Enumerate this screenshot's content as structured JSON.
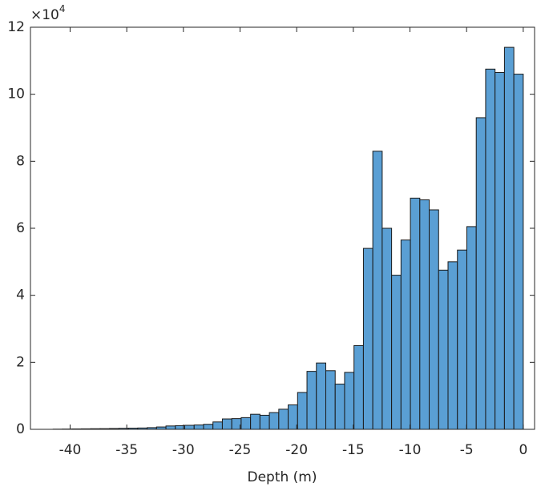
{
  "chart_data": {
    "type": "histogram",
    "xlabel": "Depth (m)",
    "y_multiplier": {
      "base": "×10",
      "exponent": "4"
    },
    "bins": [
      -41.5,
      -40.67,
      -39.84,
      -39.01,
      -38.18,
      -37.35,
      -36.52,
      -35.69,
      -34.86,
      -34.03,
      -33.2,
      -32.37,
      -31.54,
      -30.71,
      -29.88,
      -29.05,
      -28.22,
      -27.39,
      -26.56,
      -25.73,
      -24.9,
      -24.07,
      -23.24,
      -22.41,
      -21.58,
      -20.75,
      -19.92,
      -19.09,
      -18.26,
      -17.43,
      -16.6,
      -15.77,
      -14.94,
      -14.11,
      -13.28,
      -12.45,
      -11.62,
      -10.79,
      -9.96,
      -9.13,
      -8.3,
      -7.47,
      -6.64,
      -5.81,
      -4.98,
      -4.15,
      -3.32,
      -2.49,
      -1.66,
      -0.83,
      0
    ],
    "values": [
      50,
      80,
      120,
      150,
      180,
      200,
      250,
      300,
      350,
      400,
      500,
      700,
      1000,
      1100,
      1200,
      1300,
      1500,
      2200,
      3100,
      3200,
      3500,
      4500,
      4200,
      5000,
      6000,
      7300,
      11000,
      17300,
      19800,
      17500,
      13500,
      17000,
      25000,
      54000,
      83000,
      60000,
      46000,
      56500,
      69000,
      68500,
      65500,
      47500,
      50000,
      53500,
      60500,
      93000,
      107500,
      106500,
      114000,
      106000
    ],
    "color": "#5a9fd4",
    "edgecolor": "#1a1a1a",
    "xlim": [
      -43.5,
      1
    ],
    "ylim": [
      0,
      120000
    ],
    "xticks": [
      -40,
      -35,
      -30,
      -25,
      -20,
      -15,
      -10,
      -5,
      0
    ],
    "yticks": [
      {
        "value": 0,
        "label": "0"
      },
      {
        "value": 20000,
        "label": "2"
      },
      {
        "value": 40000,
        "label": "4"
      },
      {
        "value": 60000,
        "label": "6"
      },
      {
        "value": 80000,
        "label": "8"
      },
      {
        "value": 100000,
        "label": "10"
      },
      {
        "value": 120000,
        "label": "12"
      }
    ]
  }
}
